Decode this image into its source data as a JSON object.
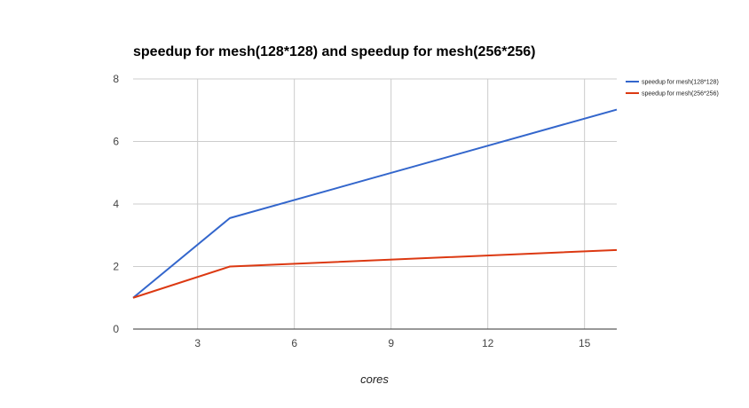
{
  "chart_data": {
    "type": "line",
    "title": "speedup for mesh(128*128) and speedup for mesh(256*256)",
    "xlabel": "cores",
    "ylabel": "",
    "xlim": [
      1,
      16
    ],
    "ylim": [
      0,
      8
    ],
    "xticks": [
      3,
      6,
      9,
      12,
      15
    ],
    "yticks": [
      0,
      2,
      4,
      6,
      8
    ],
    "grid": true,
    "legend_position": "right",
    "series": [
      {
        "name": "speedup for mesh(128*128)",
        "color": "#3366cc",
        "x": [
          1,
          4,
          16
        ],
        "y": [
          1,
          3.55,
          7.02
        ]
      },
      {
        "name": "speedup for mesh(256*256)",
        "color": "#dc3912",
        "x": [
          1,
          4,
          16
        ],
        "y": [
          1,
          2.0,
          2.53
        ]
      }
    ]
  }
}
